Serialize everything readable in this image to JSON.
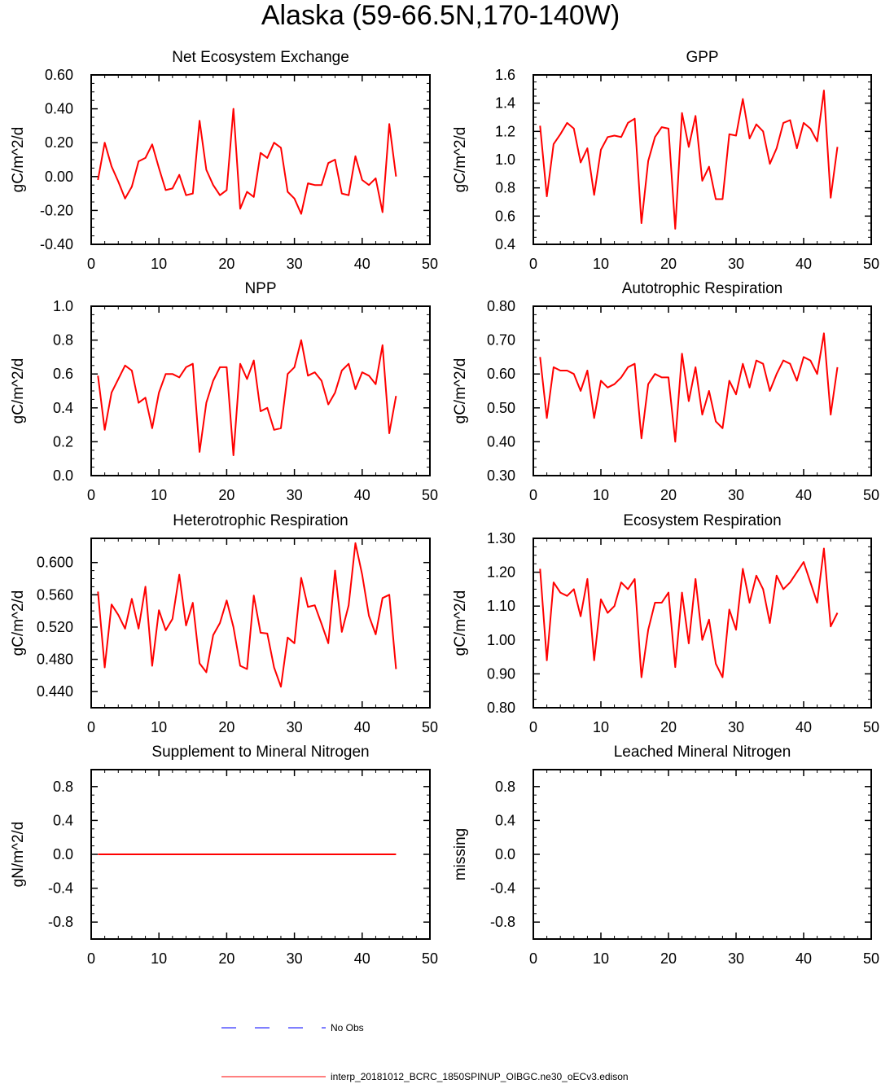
{
  "page_title": "Alaska (59-66.5N,170-140W)",
  "legend": {
    "obs_label": "No Obs",
    "model_label": "interp_20181012_BCRC_1850SPINUP_OIBGC.ne30_oECv3.edison"
  },
  "colors": {
    "model": "#ff0000",
    "obs": "#0000ff",
    "axes": "#000000"
  },
  "chart_data": [
    {
      "type": "line",
      "title": "Net Ecosystem Exchange",
      "ylabel": "gC/m^2/d",
      "xlim": [
        0,
        50
      ],
      "ylim": [
        -0.4,
        0.6
      ],
      "xticks": [
        0,
        10,
        20,
        30,
        40,
        50
      ],
      "yticks": [
        "-0.40",
        "-0.20",
        "0.00",
        "0.20",
        "0.40",
        "0.60"
      ],
      "x": [
        1,
        2,
        3,
        4,
        5,
        6,
        7,
        8,
        9,
        10,
        11,
        12,
        13,
        14,
        15,
        16,
        17,
        18,
        19,
        20,
        21,
        22,
        23,
        24,
        25,
        26,
        27,
        28,
        29,
        30,
        31,
        32,
        33,
        34,
        35,
        36,
        37,
        38,
        39,
        40,
        41,
        42,
        43,
        44,
        45
      ],
      "series": [
        {
          "values": [
            -0.02,
            0.2,
            0.06,
            -0.03,
            -0.13,
            -0.06,
            0.09,
            0.11,
            0.19,
            0.05,
            -0.08,
            -0.07,
            0.01,
            -0.11,
            -0.1,
            0.33,
            0.04,
            -0.05,
            -0.11,
            -0.08,
            0.4,
            -0.19,
            -0.09,
            -0.12,
            0.14,
            0.11,
            0.2,
            0.17,
            -0.09,
            -0.13,
            -0.22,
            -0.04,
            -0.05,
            -0.05,
            0.08,
            0.1,
            -0.1,
            -0.11,
            0.12,
            -0.02,
            -0.05,
            -0.01,
            -0.21,
            0.31,
            0.0
          ]
        }
      ]
    },
    {
      "type": "line",
      "title": "GPP",
      "ylabel": "gC/m^2/d",
      "xlim": [
        0,
        50
      ],
      "ylim": [
        0.4,
        1.6
      ],
      "xticks": [
        0,
        10,
        20,
        30,
        40,
        50
      ],
      "yticks": [
        "0.4",
        "0.6",
        "0.8",
        "1.0",
        "1.2",
        "1.4",
        "1.6"
      ],
      "x": [
        1,
        2,
        3,
        4,
        5,
        6,
        7,
        8,
        9,
        10,
        11,
        12,
        13,
        14,
        15,
        16,
        17,
        18,
        19,
        20,
        21,
        22,
        23,
        24,
        25,
        26,
        27,
        28,
        29,
        30,
        31,
        32,
        33,
        34,
        35,
        36,
        37,
        38,
        39,
        40,
        41,
        42,
        43,
        44,
        45
      ],
      "series": [
        {
          "values": [
            1.24,
            0.74,
            1.11,
            1.18,
            1.26,
            1.22,
            0.98,
            1.08,
            0.75,
            1.07,
            1.16,
            1.17,
            1.16,
            1.26,
            1.29,
            0.55,
            0.99,
            1.16,
            1.23,
            1.22,
            0.51,
            1.33,
            1.09,
            1.31,
            0.85,
            0.95,
            0.72,
            0.72,
            1.18,
            1.17,
            1.43,
            1.15,
            1.25,
            1.2,
            0.97,
            1.08,
            1.26,
            1.28,
            1.08,
            1.26,
            1.22,
            1.13,
            1.49,
            0.73,
            1.09
          ]
        }
      ]
    },
    {
      "type": "line",
      "title": "NPP",
      "ylabel": "gC/m^2/d",
      "xlim": [
        0,
        50
      ],
      "ylim": [
        0.0,
        1.0
      ],
      "xticks": [
        0,
        10,
        20,
        30,
        40,
        50
      ],
      "yticks": [
        "0.0",
        "0.2",
        "0.4",
        "0.6",
        "0.8",
        "1.0"
      ],
      "x": [
        1,
        2,
        3,
        4,
        5,
        6,
        7,
        8,
        9,
        10,
        11,
        12,
        13,
        14,
        15,
        16,
        17,
        18,
        19,
        20,
        21,
        22,
        23,
        24,
        25,
        26,
        27,
        28,
        29,
        30,
        31,
        32,
        33,
        34,
        35,
        36,
        37,
        38,
        39,
        40,
        41,
        42,
        43,
        44,
        45
      ],
      "series": [
        {
          "values": [
            0.59,
            0.27,
            0.49,
            0.57,
            0.65,
            0.62,
            0.43,
            0.46,
            0.28,
            0.49,
            0.6,
            0.6,
            0.58,
            0.64,
            0.66,
            0.14,
            0.43,
            0.56,
            0.64,
            0.64,
            0.12,
            0.66,
            0.57,
            0.68,
            0.38,
            0.4,
            0.27,
            0.28,
            0.6,
            0.64,
            0.8,
            0.59,
            0.61,
            0.56,
            0.42,
            0.49,
            0.62,
            0.66,
            0.51,
            0.61,
            0.59,
            0.54,
            0.77,
            0.25,
            0.47
          ]
        }
      ]
    },
    {
      "type": "line",
      "title": "Autotrophic Respiration",
      "ylabel": "gC/m^2/d",
      "xlim": [
        0,
        50
      ],
      "ylim": [
        0.3,
        0.8
      ],
      "xticks": [
        0,
        10,
        20,
        30,
        40,
        50
      ],
      "yticks": [
        "0.30",
        "0.40",
        "0.50",
        "0.60",
        "0.70",
        "0.80"
      ],
      "x": [
        1,
        2,
        3,
        4,
        5,
        6,
        7,
        8,
        9,
        10,
        11,
        12,
        13,
        14,
        15,
        16,
        17,
        18,
        19,
        20,
        21,
        22,
        23,
        24,
        25,
        26,
        27,
        28,
        29,
        30,
        31,
        32,
        33,
        34,
        35,
        36,
        37,
        38,
        39,
        40,
        41,
        42,
        43,
        44,
        45
      ],
      "series": [
        {
          "values": [
            0.65,
            0.47,
            0.62,
            0.61,
            0.61,
            0.6,
            0.55,
            0.61,
            0.47,
            0.58,
            0.56,
            0.57,
            0.59,
            0.62,
            0.63,
            0.41,
            0.57,
            0.6,
            0.59,
            0.59,
            0.4,
            0.66,
            0.52,
            0.62,
            0.48,
            0.55,
            0.46,
            0.44,
            0.58,
            0.54,
            0.63,
            0.56,
            0.64,
            0.63,
            0.55,
            0.6,
            0.64,
            0.63,
            0.58,
            0.65,
            0.64,
            0.6,
            0.72,
            0.48,
            0.62
          ]
        }
      ]
    },
    {
      "type": "line",
      "title": "Heterotrophic Respiration",
      "ylabel": "gC/m^2/d",
      "xlim": [
        0,
        50
      ],
      "ylim": [
        0.42,
        0.63
      ],
      "xticks": [
        0,
        10,
        20,
        30,
        40,
        50
      ],
      "yticks": [
        "0.440",
        "0.480",
        "0.520",
        "0.560",
        "0.600"
      ],
      "ytick_values": [
        0.44,
        0.48,
        0.52,
        0.56,
        0.6
      ],
      "x": [
        1,
        2,
        3,
        4,
        5,
        6,
        7,
        8,
        9,
        10,
        11,
        12,
        13,
        14,
        15,
        16,
        17,
        18,
        19,
        20,
        21,
        22,
        23,
        24,
        25,
        26,
        27,
        28,
        29,
        30,
        31,
        32,
        33,
        34,
        35,
        36,
        37,
        38,
        39,
        40,
        41,
        42,
        43,
        44,
        45
      ],
      "series": [
        {
          "values": [
            0.564,
            0.47,
            0.548,
            0.535,
            0.518,
            0.555,
            0.518,
            0.57,
            0.472,
            0.541,
            0.516,
            0.53,
            0.585,
            0.522,
            0.55,
            0.475,
            0.464,
            0.51,
            0.525,
            0.553,
            0.52,
            0.472,
            0.468,
            0.559,
            0.513,
            0.512,
            0.47,
            0.446,
            0.507,
            0.5,
            0.581,
            0.545,
            0.547,
            0.524,
            0.5,
            0.59,
            0.514,
            0.547,
            0.624,
            0.585,
            0.534,
            0.511,
            0.556,
            0.56,
            0.468
          ]
        }
      ]
    },
    {
      "type": "line",
      "title": "Ecosystem Respiration",
      "ylabel": "gC/m^2/d",
      "xlim": [
        0,
        50
      ],
      "ylim": [
        0.8,
        1.3
      ],
      "xticks": [
        0,
        10,
        20,
        30,
        40,
        50
      ],
      "yticks": [
        "0.80",
        "0.90",
        "1.00",
        "1.10",
        "1.20",
        "1.30"
      ],
      "x": [
        1,
        2,
        3,
        4,
        5,
        6,
        7,
        8,
        9,
        10,
        11,
        12,
        13,
        14,
        15,
        16,
        17,
        18,
        19,
        20,
        21,
        22,
        23,
        24,
        25,
        26,
        27,
        28,
        29,
        30,
        31,
        32,
        33,
        34,
        35,
        36,
        37,
        38,
        39,
        40,
        41,
        42,
        43,
        44,
        45
      ],
      "series": [
        {
          "values": [
            1.21,
            0.94,
            1.17,
            1.14,
            1.13,
            1.15,
            1.07,
            1.18,
            0.94,
            1.12,
            1.08,
            1.1,
            1.17,
            1.15,
            1.18,
            0.89,
            1.03,
            1.11,
            1.11,
            1.14,
            0.92,
            1.14,
            0.99,
            1.18,
            1.0,
            1.06,
            0.93,
            0.89,
            1.09,
            1.03,
            1.21,
            1.11,
            1.19,
            1.15,
            1.05,
            1.19,
            1.15,
            1.17,
            1.2,
            1.23,
            1.17,
            1.11,
            1.27,
            1.04,
            1.08
          ]
        }
      ]
    },
    {
      "type": "line",
      "title": "Supplement to Mineral Nitrogen",
      "ylabel": "gN/m^2/d",
      "xlim": [
        0,
        50
      ],
      "ylim": [
        -1.0,
        1.0
      ],
      "xticks": [
        0,
        10,
        20,
        30,
        40,
        50
      ],
      "yticks": [
        "-0.8",
        "-0.4",
        "0.0",
        "0.4",
        "0.8"
      ],
      "ytick_values": [
        -0.8,
        -0.4,
        0.0,
        0.4,
        0.8
      ],
      "x": [
        1,
        2,
        3,
        4,
        5,
        6,
        7,
        8,
        9,
        10,
        11,
        12,
        13,
        14,
        15,
        16,
        17,
        18,
        19,
        20,
        21,
        22,
        23,
        24,
        25,
        26,
        27,
        28,
        29,
        30,
        31,
        32,
        33,
        34,
        35,
        36,
        37,
        38,
        39,
        40,
        41,
        42,
        43,
        44,
        45
      ],
      "series": [
        {
          "values": [
            0,
            0,
            0,
            0,
            0,
            0,
            0,
            0,
            0,
            0,
            0,
            0,
            0,
            0,
            0,
            0,
            0,
            0,
            0,
            0,
            0,
            0,
            0,
            0,
            0,
            0,
            0,
            0,
            0,
            0,
            0,
            0,
            0,
            0,
            0,
            0,
            0,
            0,
            0,
            0,
            0,
            0,
            0,
            0,
            0
          ]
        }
      ]
    },
    {
      "type": "line",
      "title": "Leached Mineral Nitrogen",
      "ylabel": "missing",
      "xlim": [
        0,
        50
      ],
      "ylim": [
        -1.0,
        1.0
      ],
      "xticks": [
        0,
        10,
        20,
        30,
        40,
        50
      ],
      "yticks": [
        "-0.8",
        "-0.4",
        "0.0",
        "0.4",
        "0.8"
      ],
      "ytick_values": [
        -0.8,
        -0.4,
        0.0,
        0.4,
        0.8
      ],
      "x": [],
      "series": []
    }
  ]
}
